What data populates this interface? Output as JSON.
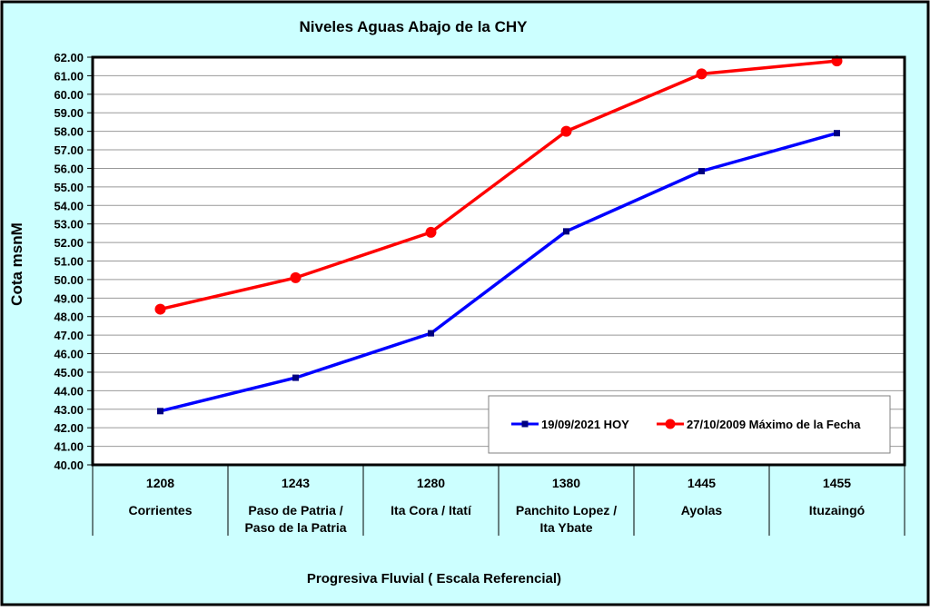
{
  "chart_data": {
    "type": "line",
    "title": "Niveles Aguas Abajo de la CHY",
    "xlabel": "Progresiva Fluvial ( Escala Referencial)",
    "ylabel": "Cota msnM",
    "ylim": [
      40,
      62
    ],
    "ytick_step": 1,
    "grid": true,
    "legend_position": "bottom-right",
    "categories": [
      {
        "code": "1208",
        "name": [
          "Corrientes"
        ]
      },
      {
        "code": "1243",
        "name": [
          "Paso de Patria /",
          "Paso de la Patria"
        ]
      },
      {
        "code": "1280",
        "name": [
          "Ita Cora / Itatí"
        ]
      },
      {
        "code": "1380",
        "name": [
          "Panchito Lopez /",
          "Ita Ybate"
        ]
      },
      {
        "code": "1445",
        "name": [
          "Ayolas"
        ]
      },
      {
        "code": "1455",
        "name": [
          "Ituzaingó"
        ]
      }
    ],
    "series": [
      {
        "name": "19/09/2021 HOY",
        "color": "#0000ff",
        "marker": "square",
        "values": [
          42.9,
          44.7,
          47.1,
          52.6,
          55.85,
          57.9
        ]
      },
      {
        "name": "27/10/2009 Máximo de la Fecha",
        "color": "#ff0000",
        "marker": "circle",
        "values": [
          48.4,
          50.1,
          52.55,
          58.0,
          61.1,
          61.8
        ]
      }
    ],
    "colors": {
      "background": "#ccffff",
      "plot_area": "#ffffff",
      "grid": "#999999",
      "frame": "#000000"
    }
  }
}
